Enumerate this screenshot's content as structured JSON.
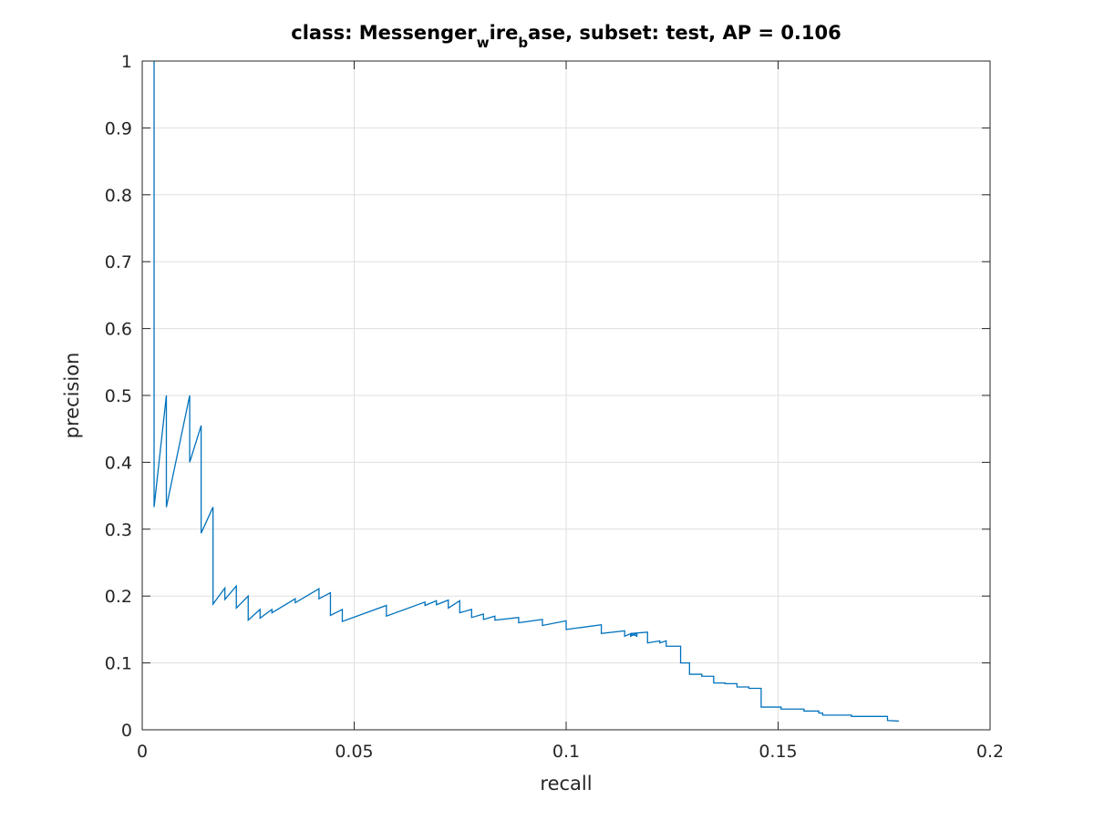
{
  "chart_data": {
    "type": "line",
    "title": {
      "part1": "class: Messenger",
      "sub1": "w",
      "part2": "ire",
      "sub2": "b",
      "part3": "ase, subset: test, AP = 0.106"
    },
    "xlabel": "recall",
    "ylabel": "precision",
    "xlim": [
      0,
      0.2
    ],
    "ylim": [
      0,
      1
    ],
    "xticks": [
      0,
      0.05,
      0.1,
      0.15,
      0.2
    ],
    "xtick_labels": [
      "0",
      "0.05",
      "0.1",
      "0.15",
      "0.2"
    ],
    "yticks": [
      0,
      0.1,
      0.2,
      0.3,
      0.4,
      0.5,
      0.6,
      0.7,
      0.8,
      0.9,
      1
    ],
    "ytick_labels": [
      "0",
      "0.1",
      "0.2",
      "0.3",
      "0.4",
      "0.5",
      "0.6",
      "0.7",
      "0.8",
      "0.9",
      "1"
    ],
    "grid": true,
    "colors": {
      "line": "#0072BD",
      "grid": "#DFDFDF",
      "axis": "#262626"
    },
    "series": [
      {
        "points": [
          [
            0.0028,
            1.0
          ],
          [
            0.0028,
            0.333
          ],
          [
            0.0057,
            0.5
          ],
          [
            0.0057,
            0.333
          ],
          [
            0.0112,
            0.5
          ],
          [
            0.0112,
            0.4
          ],
          [
            0.0139,
            0.455
          ],
          [
            0.0139,
            0.294
          ],
          [
            0.0167,
            0.333
          ],
          [
            0.0167,
            0.188
          ],
          [
            0.0195,
            0.212
          ],
          [
            0.0195,
            0.195
          ],
          [
            0.0222,
            0.215
          ],
          [
            0.0222,
            0.182
          ],
          [
            0.025,
            0.2
          ],
          [
            0.025,
            0.164
          ],
          [
            0.0278,
            0.18
          ],
          [
            0.0278,
            0.167
          ],
          [
            0.0306,
            0.18
          ],
          [
            0.0306,
            0.175
          ],
          [
            0.0361,
            0.196
          ],
          [
            0.0361,
            0.19
          ],
          [
            0.0417,
            0.211
          ],
          [
            0.0417,
            0.196
          ],
          [
            0.0444,
            0.205
          ],
          [
            0.0444,
            0.171
          ],
          [
            0.0472,
            0.18
          ],
          [
            0.0472,
            0.162
          ],
          [
            0.0576,
            0.186
          ],
          [
            0.0576,
            0.17
          ],
          [
            0.0667,
            0.191
          ],
          [
            0.0667,
            0.186
          ],
          [
            0.0694,
            0.193
          ],
          [
            0.0694,
            0.187
          ],
          [
            0.0722,
            0.194
          ],
          [
            0.0722,
            0.182
          ],
          [
            0.0749,
            0.193
          ],
          [
            0.0749,
            0.175
          ],
          [
            0.0777,
            0.18
          ],
          [
            0.0777,
            0.168
          ],
          [
            0.0805,
            0.173
          ],
          [
            0.0805,
            0.165
          ],
          [
            0.0832,
            0.17
          ],
          [
            0.0832,
            0.164
          ],
          [
            0.0888,
            0.168
          ],
          [
            0.0888,
            0.16
          ],
          [
            0.0944,
            0.165
          ],
          [
            0.0944,
            0.156
          ],
          [
            0.1,
            0.163
          ],
          [
            0.1,
            0.15
          ],
          [
            0.1083,
            0.157
          ],
          [
            0.1083,
            0.144
          ],
          [
            0.1138,
            0.148
          ],
          [
            0.1138,
            0.14
          ],
          [
            0.1153,
            0.144
          ],
          [
            0.1153,
            0.14
          ],
          [
            0.1152,
            0.144
          ],
          [
            0.1152,
            0.14
          ],
          [
            0.1167,
            0.144
          ],
          [
            0.1167,
            0.14
          ],
          [
            0.1152,
            0.144
          ],
          [
            0.1192,
            0.146
          ],
          [
            0.1192,
            0.13
          ],
          [
            0.1221,
            0.133
          ],
          [
            0.1221,
            0.13
          ],
          [
            0.1236,
            0.133
          ],
          [
            0.1236,
            0.125
          ],
          [
            0.127,
            0.125
          ],
          [
            0.127,
            0.1
          ],
          [
            0.1291,
            0.1
          ],
          [
            0.1291,
            0.083
          ],
          [
            0.132,
            0.083
          ],
          [
            0.132,
            0.08
          ],
          [
            0.1348,
            0.08
          ],
          [
            0.1348,
            0.07
          ],
          [
            0.1375,
            0.07
          ],
          [
            0.1375,
            0.069
          ],
          [
            0.1403,
            0.069
          ],
          [
            0.1403,
            0.064
          ],
          [
            0.1431,
            0.064
          ],
          [
            0.1431,
            0.062
          ],
          [
            0.146,
            0.062
          ],
          [
            0.146,
            0.034
          ],
          [
            0.1507,
            0.034
          ],
          [
            0.1507,
            0.031
          ],
          [
            0.1561,
            0.031
          ],
          [
            0.1561,
            0.028
          ],
          [
            0.1596,
            0.028
          ],
          [
            0.1596,
            0.025
          ],
          [
            0.1605,
            0.025
          ],
          [
            0.1605,
            0.022
          ],
          [
            0.1673,
            0.022
          ],
          [
            0.1673,
            0.02
          ],
          [
            0.1758,
            0.02
          ],
          [
            0.1758,
            0.014
          ],
          [
            0.1785,
            0.013
          ]
        ]
      }
    ]
  }
}
